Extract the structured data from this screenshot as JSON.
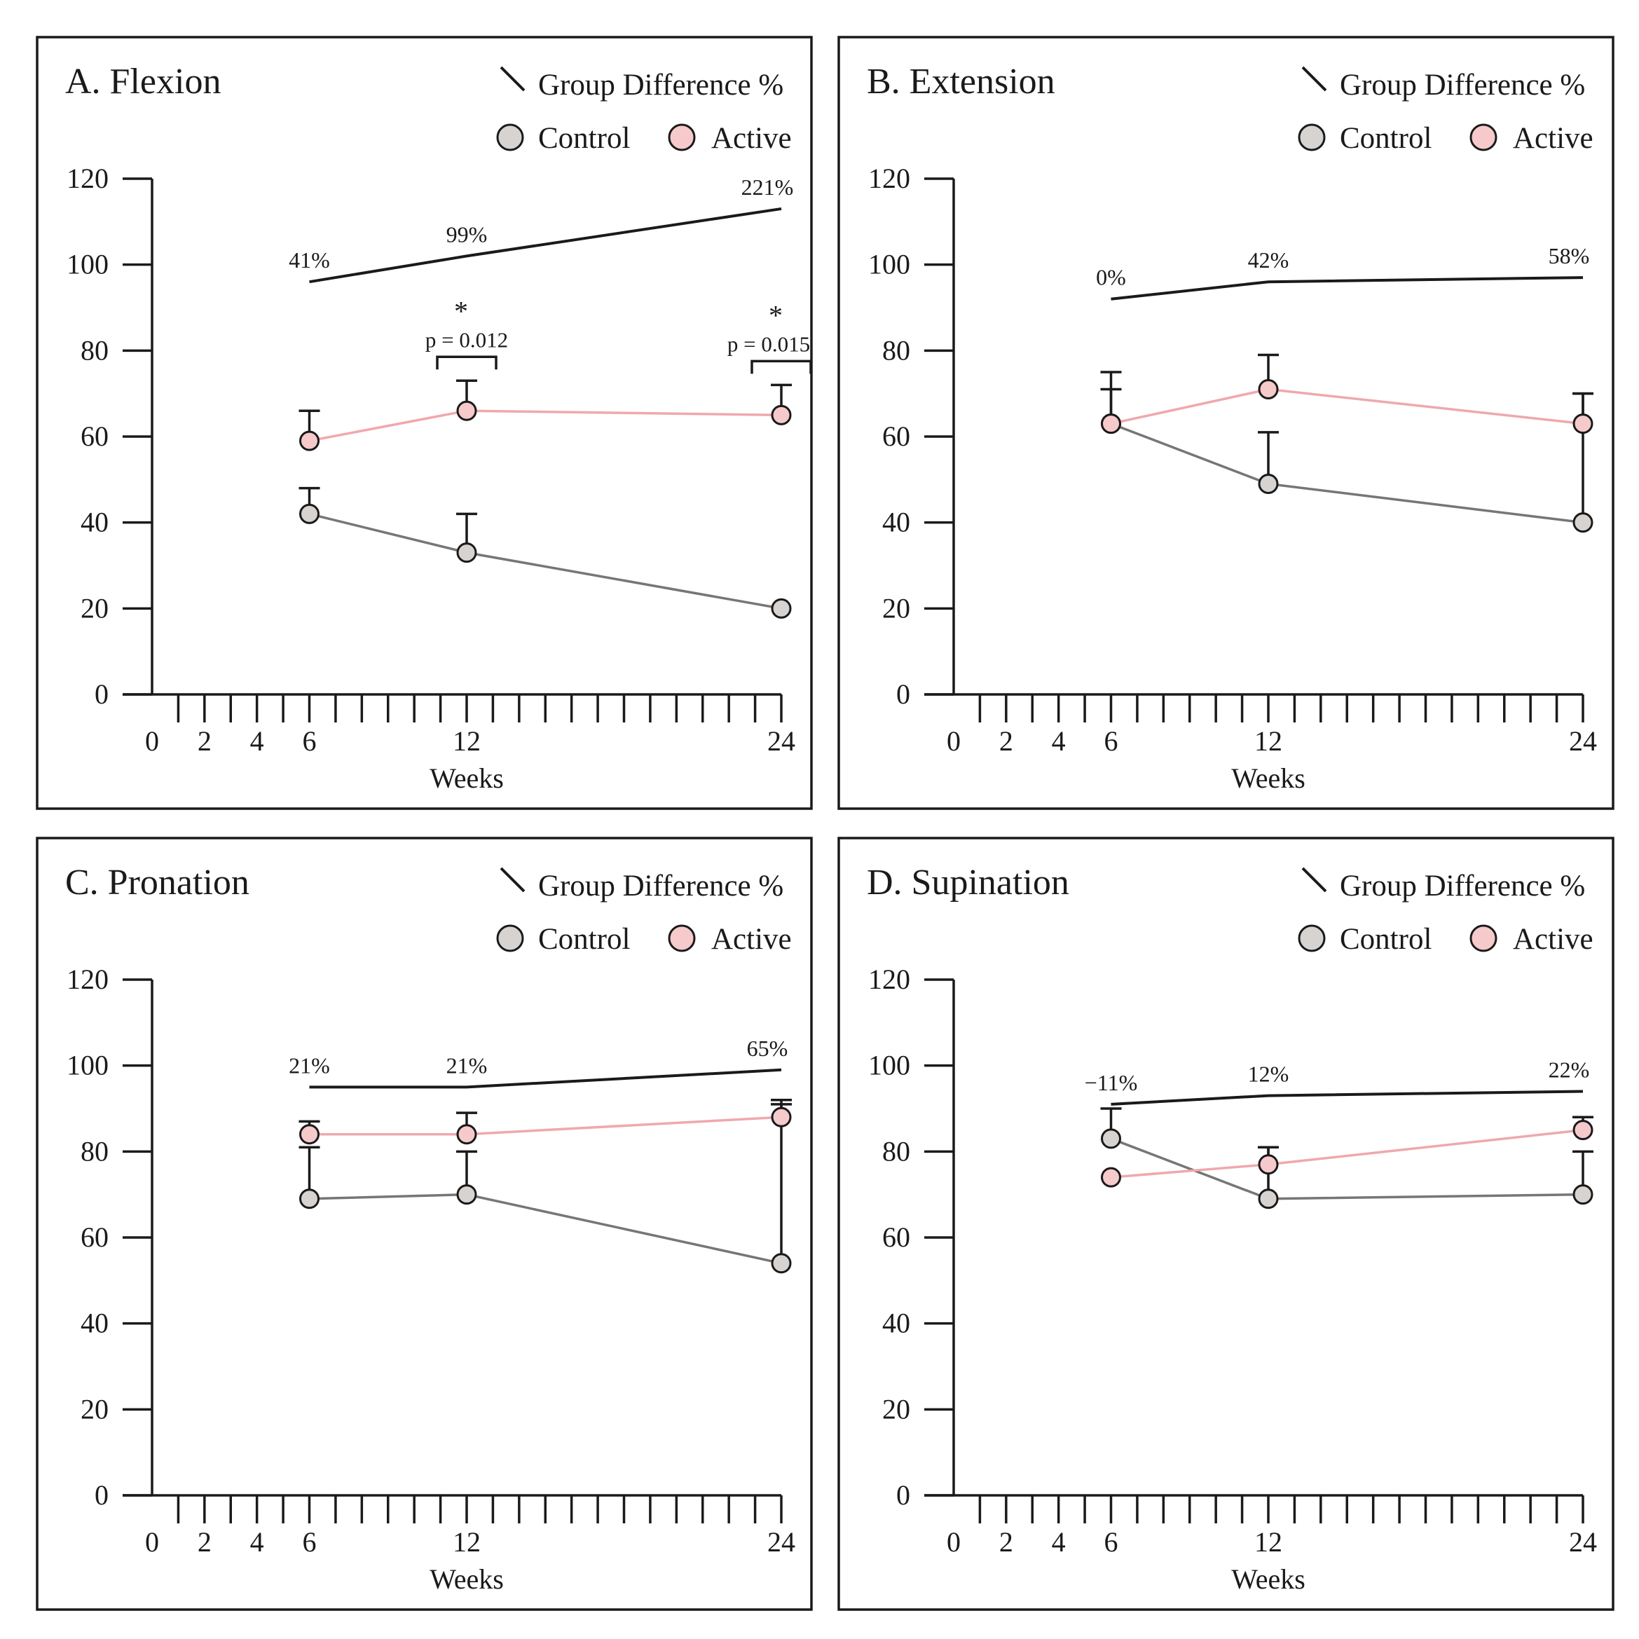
{
  "legend": {
    "difference": "Group Difference %",
    "control": "Control",
    "active": "Active"
  },
  "colors": {
    "control_fill": "#d6d3d0",
    "control_line": "#767676",
    "active_fill": "#f6c9cb",
    "active_line": "#f0a8ad",
    "difference_line": "#1a1a1a",
    "frame": "#1a1a1a"
  },
  "chart_data": [
    {
      "type": "line",
      "title": "A. Flexion",
      "xlabel": "Weeks",
      "ylabel": "",
      "xlim": [
        0,
        24
      ],
      "ylim": [
        0,
        120
      ],
      "x_ticks": [
        0,
        2,
        4,
        6,
        12,
        24
      ],
      "y_ticks": [
        0,
        20,
        40,
        60,
        80,
        100,
        120
      ],
      "x": [
        6,
        12,
        24
      ],
      "series": [
        {
          "name": "Control",
          "values": [
            42,
            33,
            20
          ],
          "error": [
            6,
            9,
            0
          ]
        },
        {
          "name": "Active",
          "values": [
            59,
            66,
            65
          ],
          "error": [
            7,
            7,
            7
          ]
        }
      ],
      "difference": {
        "y": [
          96,
          102,
          113
        ],
        "labels": [
          "41%",
          "99%",
          "221%"
        ]
      },
      "significance": [
        {
          "x": 12,
          "star": "*",
          "text": "p = 0.012"
        },
        {
          "x": 24,
          "star": "*",
          "text": "p = 0.015"
        }
      ]
    },
    {
      "type": "line",
      "title": "B. Extension",
      "xlabel": "Weeks",
      "ylabel": "",
      "xlim": [
        0,
        24
      ],
      "ylim": [
        0,
        120
      ],
      "x_ticks": [
        0,
        2,
        4,
        6,
        12,
        24
      ],
      "y_ticks": [
        0,
        20,
        40,
        60,
        80,
        100,
        120
      ],
      "x": [
        6,
        12,
        24
      ],
      "series": [
        {
          "name": "Control",
          "values": [
            63,
            49,
            40
          ],
          "error": [
            8,
            12,
            30
          ]
        },
        {
          "name": "Active",
          "values": [
            63,
            71,
            63
          ],
          "error": [
            12,
            8,
            7
          ]
        }
      ],
      "difference": {
        "y": [
          92,
          96,
          97
        ],
        "labels": [
          "0%",
          "42%",
          "58%"
        ]
      },
      "significance": []
    },
    {
      "type": "line",
      "title": "C. Pronation",
      "xlabel": "Weeks",
      "ylabel": "",
      "xlim": [
        0,
        24
      ],
      "ylim": [
        0,
        120
      ],
      "x_ticks": [
        0,
        2,
        4,
        6,
        12,
        24
      ],
      "y_ticks": [
        0,
        20,
        40,
        60,
        80,
        100,
        120
      ],
      "x": [
        6,
        12,
        24
      ],
      "series": [
        {
          "name": "Control",
          "values": [
            69,
            70,
            54
          ],
          "error": [
            12,
            10,
            37
          ]
        },
        {
          "name": "Active",
          "values": [
            84,
            84,
            88
          ],
          "error": [
            3,
            5,
            4
          ]
        }
      ],
      "difference": {
        "y": [
          95,
          95,
          99
        ],
        "labels": [
          "21%",
          "21%",
          "65%"
        ]
      },
      "significance": []
    },
    {
      "type": "line",
      "title": "D. Supination",
      "xlabel": "Weeks",
      "ylabel": "",
      "xlim": [
        0,
        24
      ],
      "ylim": [
        0,
        120
      ],
      "x_ticks": [
        0,
        2,
        4,
        6,
        12,
        24
      ],
      "y_ticks": [
        0,
        20,
        40,
        60,
        80,
        100,
        120
      ],
      "x": [
        6,
        12,
        24
      ],
      "series": [
        {
          "name": "Control",
          "values": [
            83,
            69,
            70
          ],
          "error": [
            7,
            12,
            10
          ]
        },
        {
          "name": "Active",
          "values": [
            74,
            77,
            85
          ],
          "error": [
            0,
            4,
            3
          ]
        }
      ],
      "difference": {
        "y": [
          91,
          93,
          94
        ],
        "labels": [
          "−11%",
          "12%",
          "22%"
        ]
      },
      "significance": []
    }
  ]
}
